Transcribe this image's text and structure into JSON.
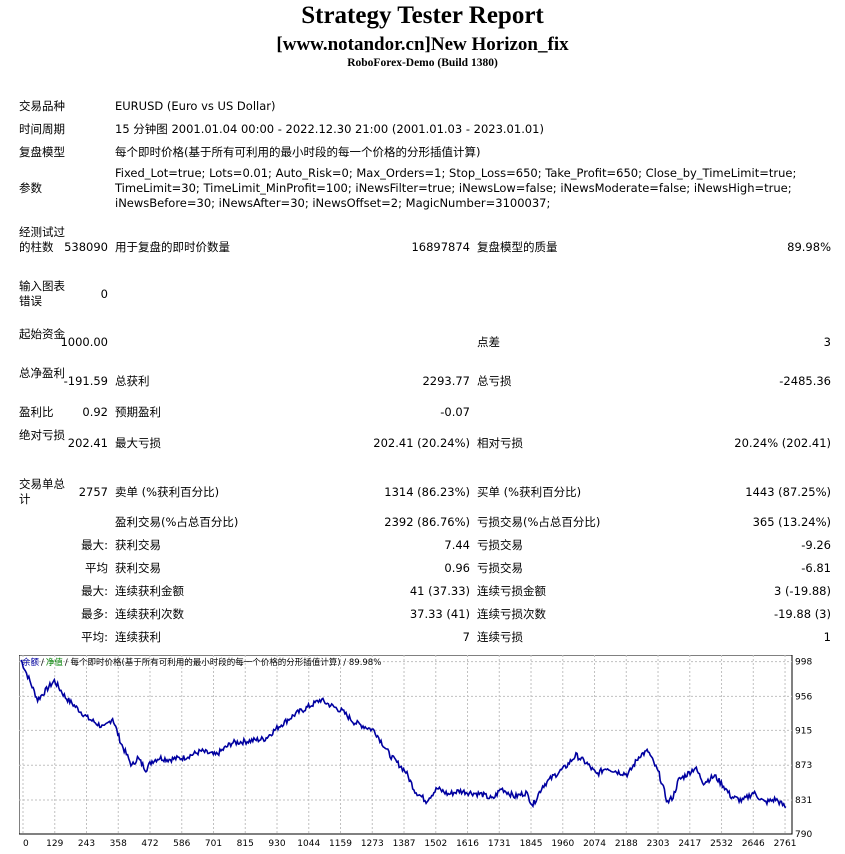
{
  "header": {
    "title": "Strategy Tester Report",
    "subtitle": "[www.notandor.cn]New Horizon_fix",
    "server": "RoboForex-Demo (Build 1380)"
  },
  "info": {
    "symbol_label": "交易品种",
    "symbol_value": "EURUSD (Euro vs US Dollar)",
    "period_label": "时间周期",
    "period_value": "15 分钟图 2001.01.04 00:00 - 2022.12.30 21:00 (2001.01.03 - 2023.01.01)",
    "model_label": "复盘模型",
    "model_value": "每个即时价格(基于所有可利用的最小时段的每一个价格的分形插值计算)",
    "params_label": "参数",
    "params_line1": "Fixed_Lot=true; Lots=0.01; Auto_Risk=0; Max_Orders=1; Stop_Loss=650; Take_Profit=650; Close_by_TimeLimit=true;",
    "params_line2": "TimeLimit=30; TimeLimit_MinProfit=100; iNewsFilter=true; iNewsLow=false; iNewsModerate=false; iNewsHigh=true;",
    "params_line3": "iNewsBefore=30; iNewsAfter=30; iNewsOffset=2; MagicNumber=3100037;"
  },
  "stats": {
    "bars_label": "经测试过的柱数",
    "bars_value": "538090",
    "ticks_label": "用于复盘的即时价数量",
    "ticks_value": "16897874",
    "quality_label": "复盘模型的质量",
    "quality_value": "89.98%",
    "mismatch_label": "输入图表错误",
    "mismatch_value": "0",
    "deposit_label": "起始资金",
    "deposit_value": "1000.00",
    "spread_label": "点差",
    "spread_value": "3",
    "net_label": "总净盈利",
    "net_value": "-191.59",
    "gross_profit_label": "总获利",
    "gross_profit_value": "2293.77",
    "gross_loss_label": "总亏损",
    "gross_loss_value": "-2485.36",
    "pf_label": "盈利比",
    "pf_value": "0.92",
    "payoff_label": "预期盈利",
    "payoff_value": "-0.07",
    "abs_dd_label": "绝对亏损",
    "abs_dd_value": "202.41",
    "max_dd_label": "最大亏损",
    "max_dd_value": "202.41 (20.24%)",
    "rel_dd_label": "相对亏损",
    "rel_dd_value": "20.24% (202.41)",
    "trades_label": "交易单总计",
    "trades_value": "2757",
    "short_label": "卖单 (%获利百分比)",
    "short_value": "1314 (86.23%)",
    "long_label": "买单 (%获利百分比)",
    "long_value": "1443 (87.25%)",
    "profit_trades_label": "盈利交易(%占总百分比)",
    "profit_trades_value": "2392 (86.76%)",
    "loss_trades_label": "亏损交易(%占总百分比)",
    "loss_trades_value": "365 (13.24%)",
    "largest_prefix": "最大:",
    "largest_profit_label": "获利交易",
    "largest_profit_value": "7.44",
    "largest_loss_label": "亏损交易",
    "largest_loss_value": "-9.26",
    "average_prefix": "平均",
    "avg_profit_label": "获利交易",
    "avg_profit_value": "0.96",
    "avg_loss_label": "亏损交易",
    "avg_loss_value": "-6.81",
    "maxcons_prefix": "最大:",
    "maxcons_wins_label": "连续获利金额",
    "maxcons_wins_value": "41 (37.33)",
    "maxcons_losses_label": "连续亏损金额",
    "maxcons_losses_value": "3 (-19.88)",
    "most_prefix": "最多:",
    "most_profit_label": "连续获利次数",
    "most_profit_value": "37.33 (41)",
    "most_loss_label": "连续亏损次数",
    "most_loss_value": "-19.88 (3)",
    "avgcons_prefix": "平均:",
    "avgcons_wins_label": "连续获利",
    "avgcons_wins_value": "7",
    "avgcons_losses_label": "连续亏损",
    "avgcons_losses_value": "1"
  },
  "chart_data": {
    "type": "line",
    "legend_balance": "余额",
    "legend_equity": "净值",
    "legend_rest": "/ 每个即时价格(基于所有可利用的最小时段的每一个价格的分形插值计算) / 89.98%",
    "x_ticks": [
      "0",
      "129",
      "243",
      "358",
      "472",
      "586",
      "701",
      "815",
      "930",
      "1044",
      "1159",
      "1273",
      "1387",
      "1502",
      "1616",
      "1731",
      "1845",
      "1960",
      "2074",
      "2188",
      "2303",
      "2417",
      "2532",
      "2646",
      "2761"
    ],
    "y_ticks": [
      "998",
      "956",
      "915",
      "873",
      "831",
      "790"
    ],
    "xlim": [
      0,
      2757
    ],
    "ylim": [
      790,
      1006
    ],
    "grid": true,
    "colors": {
      "line": "#0000a0",
      "grid": "#c0c0c0",
      "legend_balance": "#0000a0",
      "legend_equity": "#008000"
    },
    "series": [
      {
        "x": [
          0,
          60,
          120,
          160,
          240,
          300,
          330,
          360,
          400,
          420,
          450,
          472,
          500,
          530,
          586,
          650,
          701,
          760,
          815,
          880,
          930,
          990,
          1044,
          1080,
          1100,
          1159,
          1200,
          1273,
          1330,
          1387,
          1420,
          1460,
          1500,
          1540,
          1580,
          1616,
          1660,
          1700,
          1731,
          1780,
          1820,
          1845,
          1880,
          1920,
          1960,
          2000,
          2040,
          2074,
          2110,
          2150,
          2188,
          2230,
          2260,
          2300,
          2330,
          2350,
          2370,
          2400,
          2430,
          2460,
          2500,
          2532,
          2560,
          2600,
          2640,
          2680,
          2720,
          2757
        ],
        "y": [
          1000,
          952,
          975,
          955,
          930,
          918,
          930,
          900,
          872,
          882,
          868,
          878,
          882,
          880,
          882,
          890,
          885,
          900,
          902,
          905,
          920,
          935,
          945,
          952,
          948,
          938,
          925,
          915,
          885,
          865,
          842,
          830,
          845,
          838,
          842,
          840,
          838,
          832,
          845,
          835,
          840,
          825,
          848,
          860,
          870,
          885,
          875,
          862,
          870,
          865,
          862,
          885,
          890,
          862,
          828,
          835,
          855,
          862,
          870,
          852,
          860,
          848,
          835,
          830,
          840,
          828,
          832,
          822
        ]
      }
    ]
  }
}
